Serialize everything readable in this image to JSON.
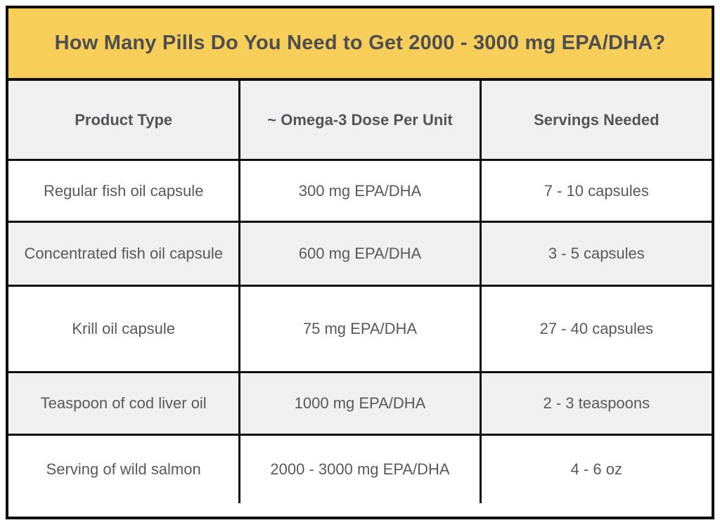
{
  "chart_data": {
    "type": "table",
    "title": "How Many Pills Do You Need to Get 2000 - 3000 mg EPA/DHA?",
    "columns": [
      "Product Type",
      "~ Omega-3 Dose Per Unit",
      "Servings Needed"
    ],
    "rows": [
      [
        "Regular fish oil capsule",
        "300 mg EPA/DHA",
        "7 - 10 capsules"
      ],
      [
        "Concentrated fish oil capsule",
        "600 mg EPA/DHA",
        "3 - 5 capsules"
      ],
      [
        "Krill oil capsule",
        "75 mg EPA/DHA",
        "27 - 40 capsules"
      ],
      [
        "Teaspoon of cod liver oil",
        "1000 mg EPA/DHA",
        "2 - 3 teaspoons"
      ],
      [
        "Serving of wild salmon",
        "2000 - 3000 mg EPA/DHA",
        "4 - 6 oz"
      ]
    ],
    "layout_hints": {
      "title_band": "top, full width",
      "row_striping": "header and alternate rows light gray, others white",
      "grid": "black borders around all cells and outer frame"
    }
  },
  "colors": {
    "title_background": "#F8CE5A",
    "gray_row_background": "#F0F0F1",
    "white_row_background": "#FFFFFF",
    "border": "#0E0E0E",
    "title_text": "#4D4E50",
    "header_text": "#535456",
    "cell_text": "#58595B"
  }
}
